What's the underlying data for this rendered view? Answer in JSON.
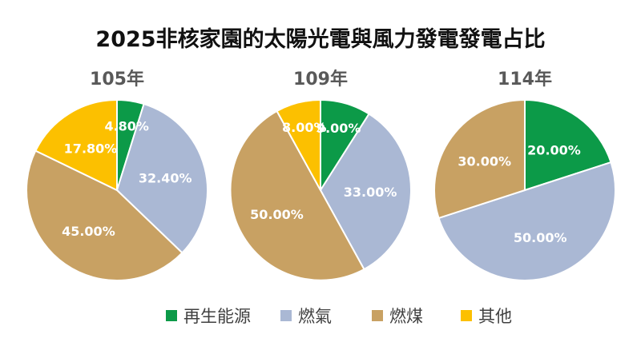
{
  "title": "2025非核家園的太陽光電與風力發電發電占比",
  "colors": {
    "renewable": "#0c9a48",
    "gas": "#aab8d4",
    "coal": "#c8a163",
    "other": "#fcc000"
  },
  "legend": [
    {
      "label": "再生能源",
      "color_key": "renewable"
    },
    {
      "label": "燃氣",
      "color_key": "gas"
    },
    {
      "label": "燃煤",
      "color_key": "coal"
    },
    {
      "label": "其他",
      "color_key": "other"
    }
  ],
  "chart_data": [
    {
      "type": "pie",
      "title": "105年",
      "categories": [
        "再生能源",
        "燃氣",
        "燃煤",
        "其他"
      ],
      "values": [
        4.8,
        32.4,
        45.0,
        17.8
      ],
      "labels": [
        "4.80%",
        "32.40%",
        "45.00%",
        "17.80%"
      ]
    },
    {
      "type": "pie",
      "title": "109年",
      "categories": [
        "再生能源",
        "燃氣",
        "燃煤",
        "其他"
      ],
      "values": [
        9.0,
        33.0,
        50.0,
        8.0
      ],
      "labels": [
        "9.00%",
        "33.00%",
        "50.00%",
        "8.00%"
      ]
    },
    {
      "type": "pie",
      "title": "114年",
      "categories": [
        "再生能源",
        "燃氣",
        "燃煤"
      ],
      "values": [
        20.0,
        50.0,
        30.0
      ],
      "labels": [
        "20.00%",
        "50.00%",
        "30.00%"
      ]
    }
  ]
}
